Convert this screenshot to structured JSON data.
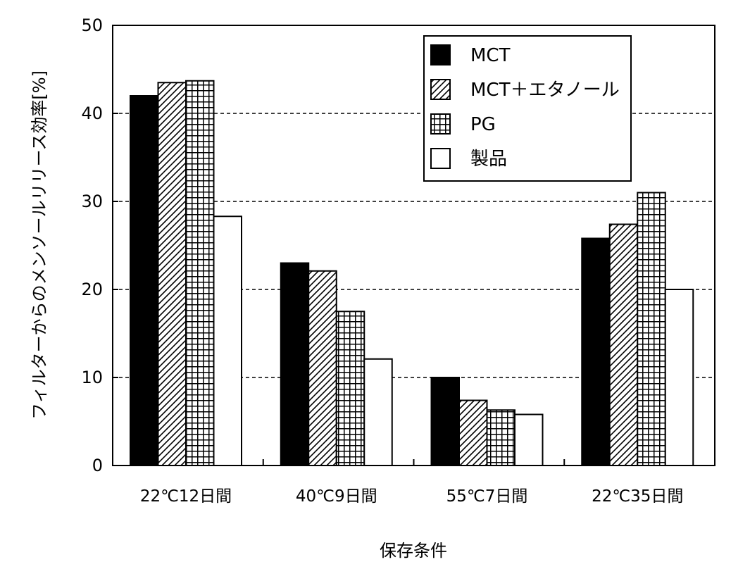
{
  "chart_data": {
    "type": "bar",
    "categories": [
      "22℃12日間",
      "40℃9日間",
      "55℃7日間",
      "22℃35日間"
    ],
    "series": [
      {
        "name": "MCT",
        "values": [
          42.0,
          23.0,
          10.0,
          25.8
        ]
      },
      {
        "name": "MCT＋エタノール",
        "values": [
          43.5,
          22.1,
          7.4,
          27.4
        ]
      },
      {
        "name": "PG",
        "values": [
          43.7,
          17.5,
          6.3,
          31.0
        ]
      },
      {
        "name": "製品",
        "values": [
          28.3,
          12.1,
          5.8,
          20.0
        ]
      }
    ],
    "xlabel": "保存条件",
    "ylabel": "フィルターからのメンソールリリース効率[%]",
    "ylim": [
      0,
      50
    ],
    "yticks": [
      0,
      10,
      20,
      30,
      40,
      50
    ],
    "grid": "horizontal-dashed",
    "legend_position": "top-right"
  }
}
